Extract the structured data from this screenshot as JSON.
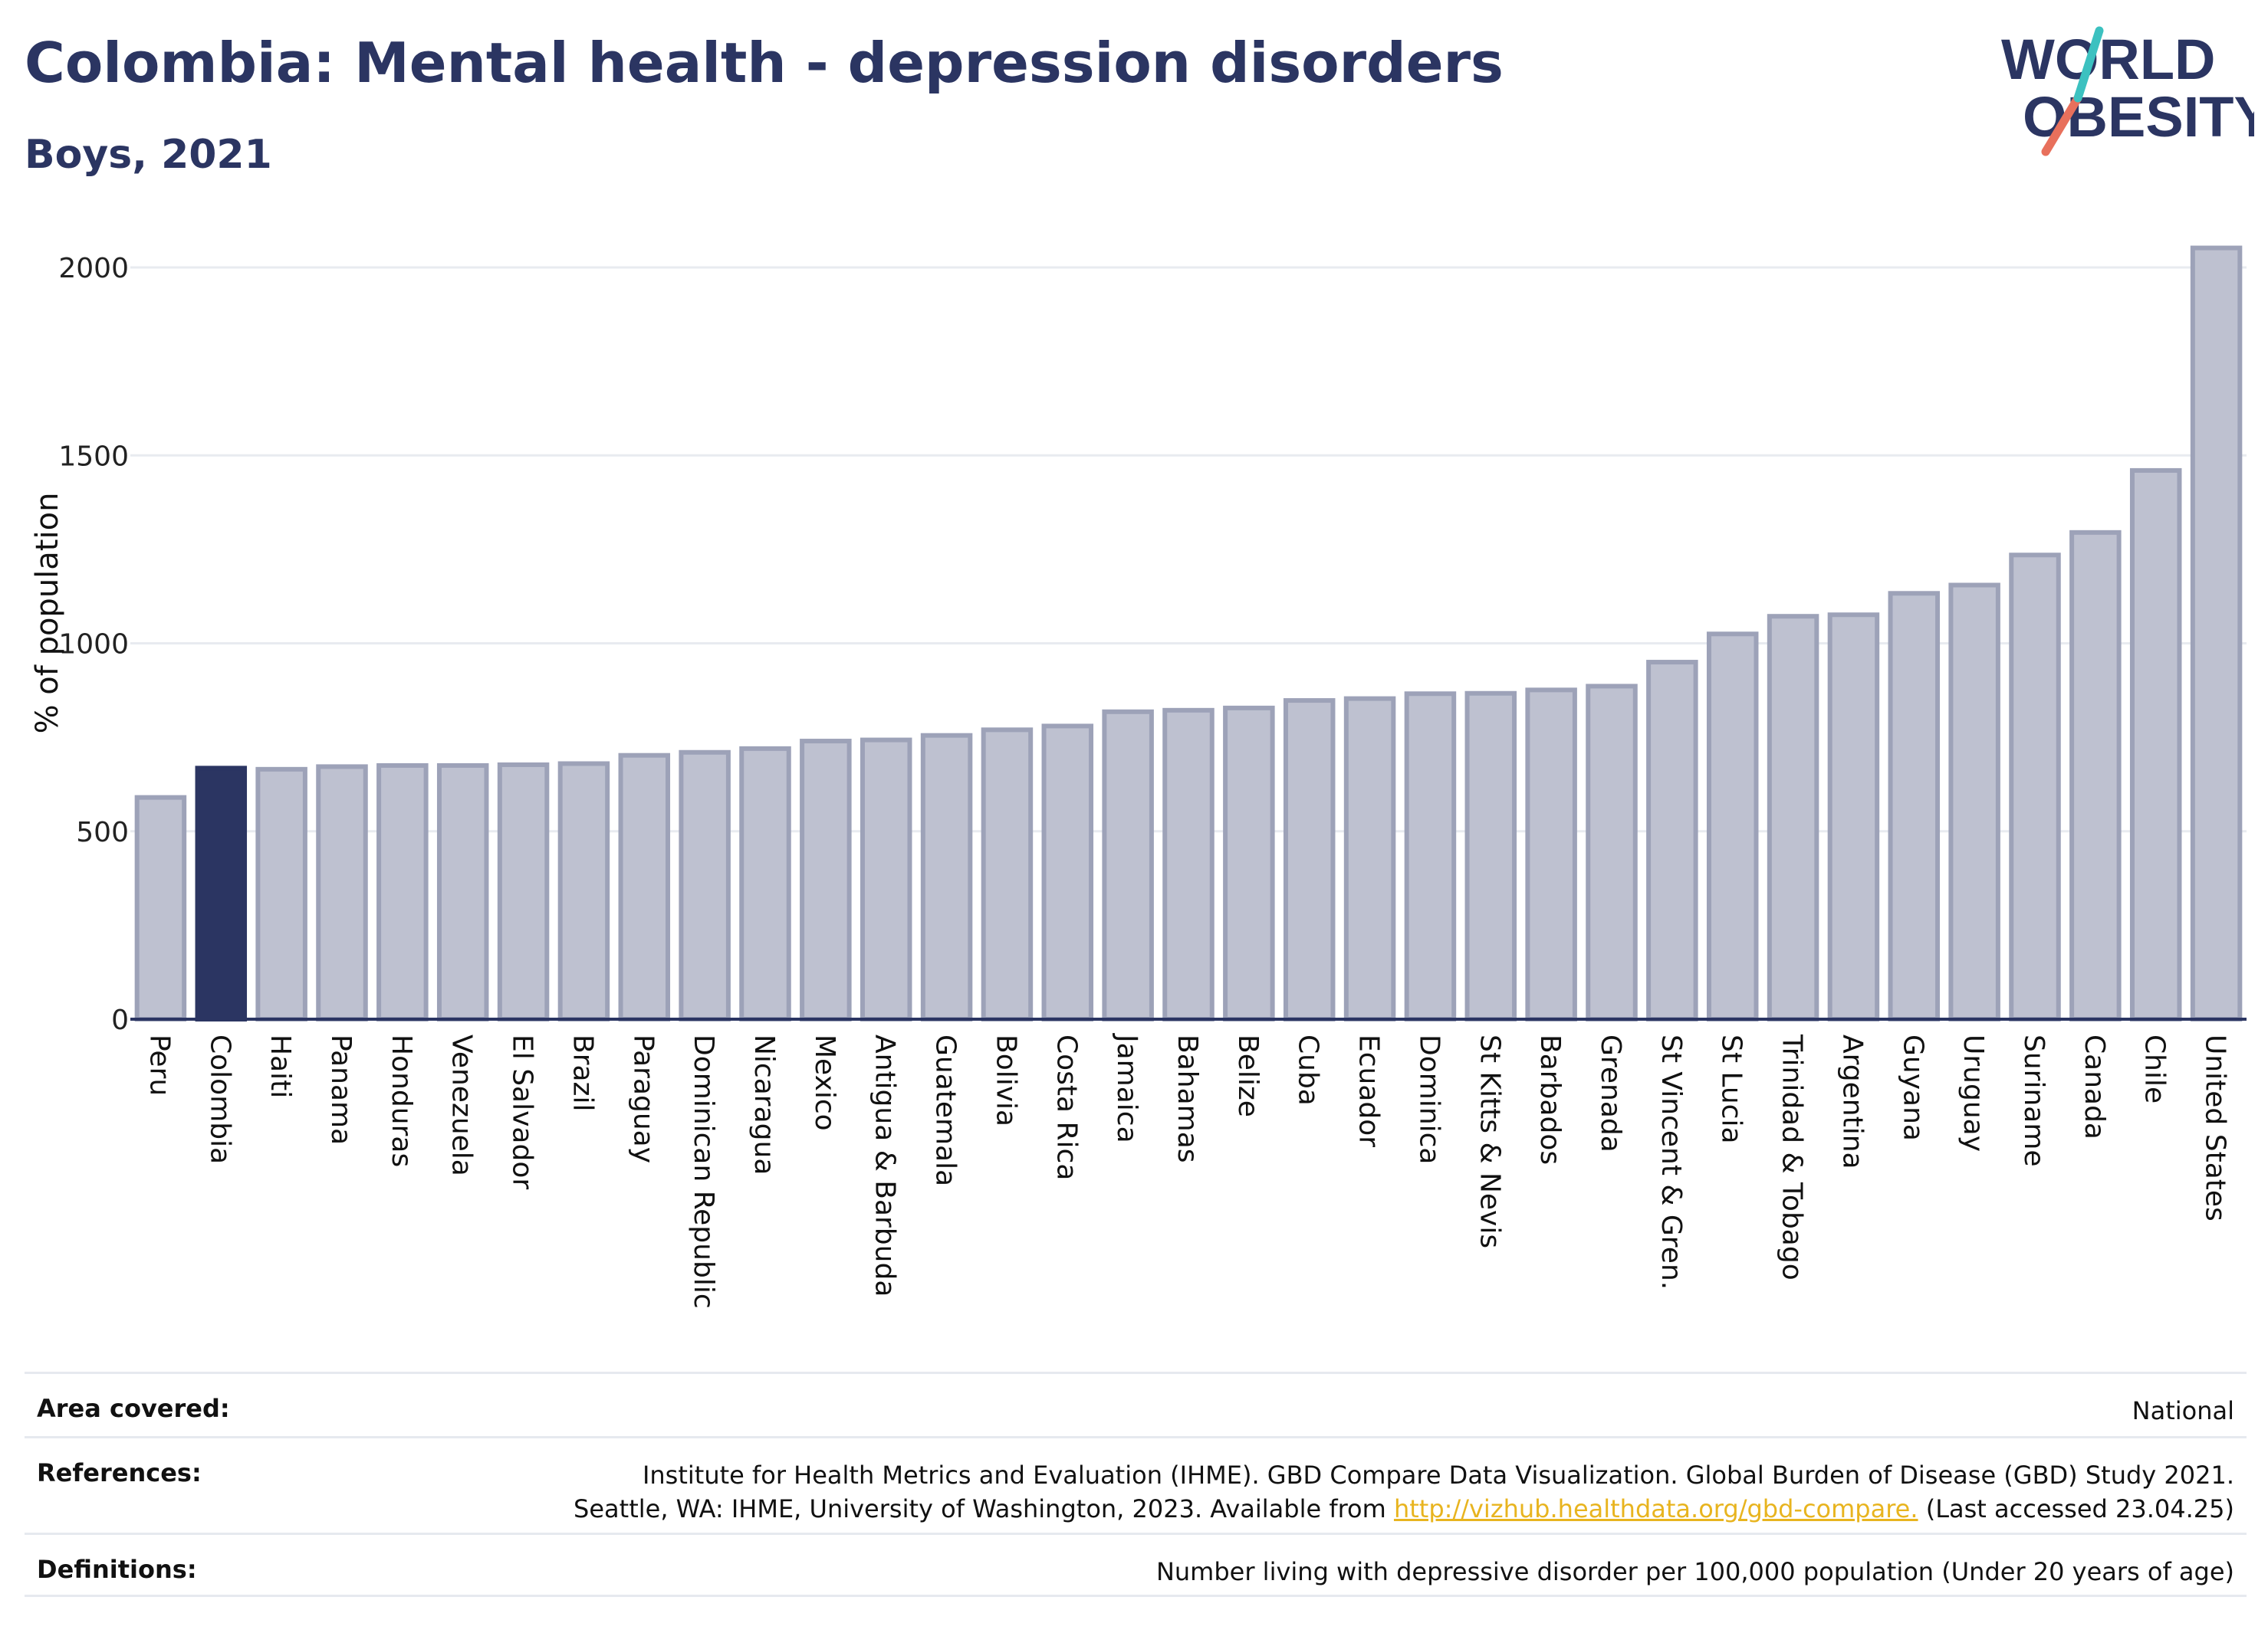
{
  "header": {
    "title": "Colombia: Mental health - depression disorders",
    "subtitle": "Boys, 2021"
  },
  "logo": {
    "line1": "WORLD",
    "line2": "OBESITY"
  },
  "colors": {
    "highlight": "#2b3562",
    "bar_fill": "#bec1d0",
    "bar_stroke": "#9da2b8",
    "gridline": "#e8ebf0",
    "axis": "#2b3562",
    "logo_teal": "#3cc1c0",
    "logo_coral": "#e8705c",
    "link": "#e8b41f"
  },
  "chart_data": {
    "type": "bar",
    "title": "",
    "xlabel": "",
    "ylabel": "% of population",
    "ylim": [
      0,
      2100
    ],
    "yticks": [
      0,
      500,
      1000,
      1500,
      2000
    ],
    "grid": true,
    "highlight": "Colombia",
    "categories": [
      "Peru",
      "Colombia",
      "Haiti",
      "Panama",
      "Honduras",
      "Venezuela",
      "El Salvador",
      "Brazil",
      "Paraguay",
      "Dominican Republic",
      "Nicaragua",
      "Mexico",
      "Antigua & Barbuda",
      "Guatemala",
      "Bolivia",
      "Costa Rica",
      "Jamaica",
      "Bahamas",
      "Belize",
      "Cuba",
      "Ecuador",
      "Dominica",
      "St Kitts & Nevis",
      "Barbados",
      "Grenada",
      "St Vincent & Gren.",
      "St Lucia",
      "Trinidad & Tobago",
      "Argentina",
      "Guyana",
      "Uruguay",
      "Suriname",
      "Canada",
      "Chile",
      "United States"
    ],
    "values": [
      590,
      668,
      665,
      672,
      675,
      675,
      677,
      680,
      702,
      710,
      720,
      740,
      743,
      755,
      770,
      780,
      818,
      822,
      828,
      848,
      853,
      866,
      867,
      876,
      886,
      950,
      1025,
      1072,
      1076,
      1133,
      1155,
      1235,
      1295,
      1460,
      2052
    ]
  },
  "info": {
    "area_label": "Area covered:",
    "area_value": "National",
    "references_label": "References:",
    "references_line1": "Institute for Health Metrics and Evaluation (IHME). GBD Compare Data Visualization. Global Burden of Disease (GBD) Study 2021.",
    "references_line2_pre": "Seattle, WA: IHME, University of Washington, 2023. Available from ",
    "references_link": "http://vizhub.healthdata.org/gbd-compare.",
    "references_line2_post": " (Last accessed 23.04.25)",
    "definitions_label": "Definitions:",
    "definitions_value": "Number living with depressive disorder per 100,000 population (Under 20 years of age)"
  }
}
